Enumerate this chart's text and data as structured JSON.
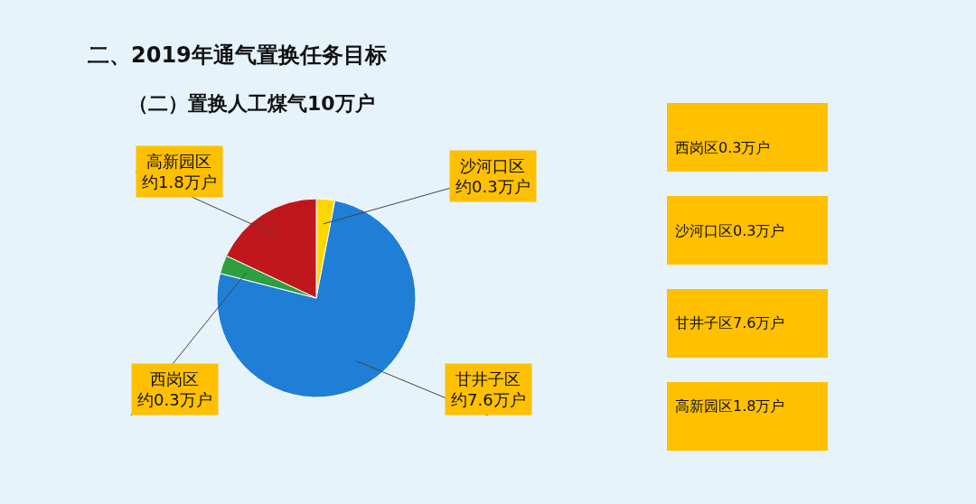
{
  "chart_data": [
    {
      "type": "pie",
      "title": "二、2019年通气置换任务目标",
      "subtitle": "（二）置换人工煤气10万户",
      "categories": [
        "沙河口区",
        "甘井子区",
        "西岗区",
        "高新园区"
      ],
      "values": [
        0.3,
        7.6,
        0.3,
        1.8
      ],
      "colors": [
        "#ffd700",
        "#1f7fd6",
        "#2e9e3e",
        "#c0171d"
      ],
      "value_labels": [
        "约0.3万户",
        "约7.6万户",
        "约0.3万户",
        "约1.8万户"
      ]
    },
    {
      "type": "other",
      "annotations": [
        "西岗区0.3万户",
        "沙河口区0.3万户",
        "甘井子区7.6万户",
        "高新园区1.8万户"
      ]
    }
  ]
}
